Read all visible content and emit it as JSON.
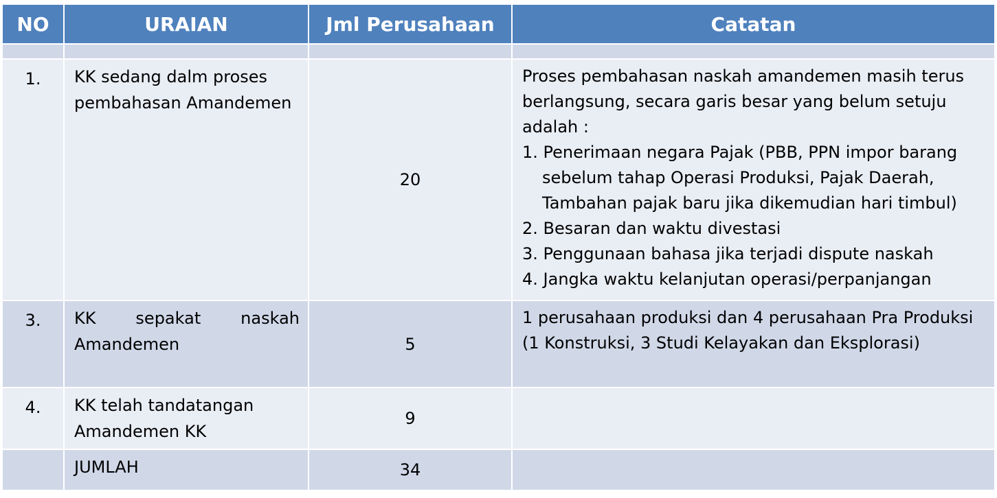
{
  "headers": {
    "no": "NO",
    "uraian": "URAIAN",
    "jml": "Jml Perusahaan",
    "catatan": "Catatan"
  },
  "rows": [
    {
      "no": "1.",
      "uraian": "KK sedang dalm proses pembahasan Amandemen",
      "jml": "20",
      "catatan_intro": "Proses pembahasan naskah amandemen masih terus berlangsung, secara garis besar yang belum setuju adalah :",
      "catatan_items": [
        "1. Penerimaan negara Pajak (PBB, PPN impor barang sebelum tahap Operasi Produksi, Pajak Daerah, Tambahan pajak baru jika dikemudian hari timbul)",
        "2. Besaran dan waktu divestasi",
        "3. Penggunaan bahasa jika  terjadi dispute naskah",
        "4. Jangka waktu kelanjutan operasi/perpanjangan"
      ]
    },
    {
      "no": "3.",
      "uraian_line1": "KK sepakat naskah",
      "uraian_line2": "Amandemen",
      "jml": "5",
      "catatan": "1 perusahaan produksi dan 4 perusahaan Pra Produksi (1 Konstruksi, 3 Studi Kelayakan dan Eksplorasi)"
    },
    {
      "no": "4.",
      "uraian": "KK telah tandatangan Amandemen KK",
      "jml": "9",
      "catatan": ""
    },
    {
      "no": "",
      "uraian": "JUMLAH",
      "jml": "34",
      "catatan": ""
    }
  ],
  "colors": {
    "header": "#4f81bd",
    "band_light": "#e9edf4",
    "band_dark": "#d0d8e8"
  }
}
